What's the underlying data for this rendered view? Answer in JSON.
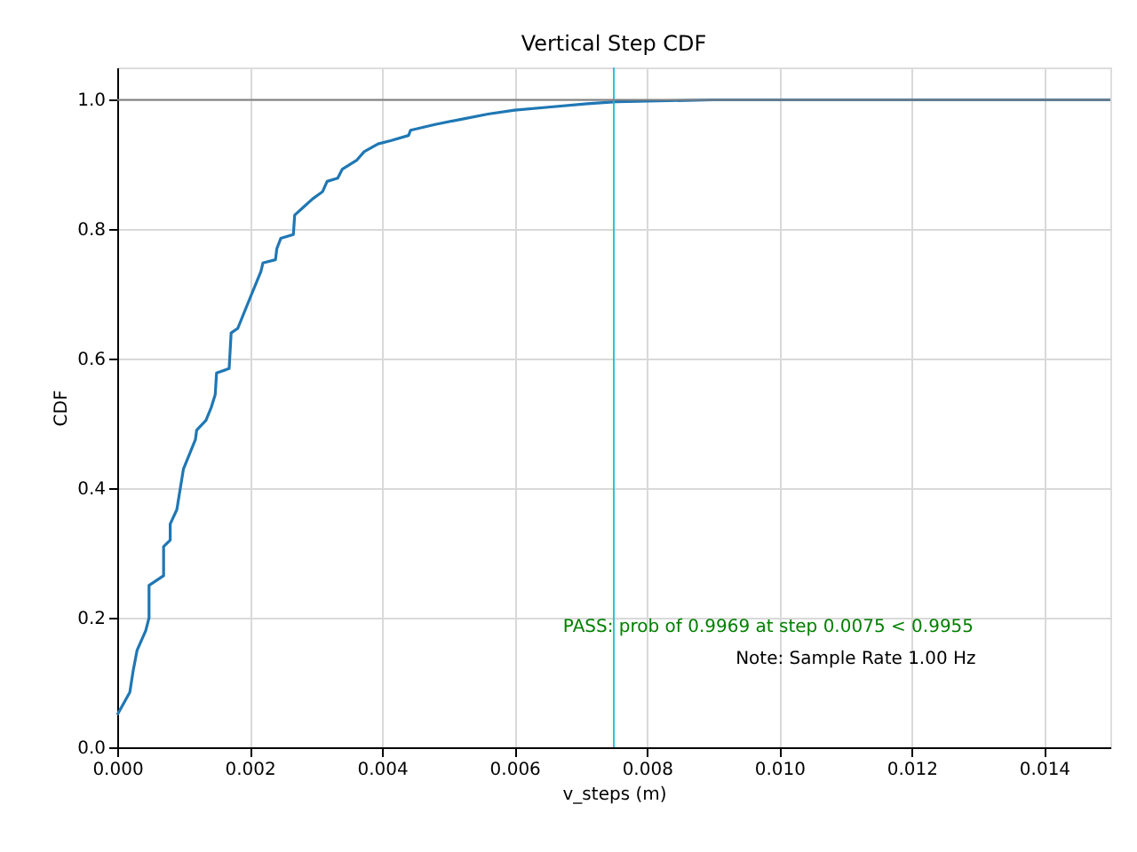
{
  "chart_data": {
    "type": "line",
    "title": "Vertical Step CDF",
    "xlabel": "v_steps (m)",
    "ylabel": "CDF",
    "x": [
      0,
      0.00019,
      0.00024,
      0.0003,
      0.00043,
      0.00048,
      0.00048,
      0.0007,
      0.0007,
      0.0008,
      0.0008,
      0.0009,
      0.001,
      0.00118,
      0.0012,
      0.00134,
      0.00142,
      0.00148,
      0.0015,
      0.00169,
      0.00172,
      0.00182,
      0.00201,
      0.00217,
      0.0022,
      0.00239,
      0.00241,
      0.00247,
      0.00266,
      0.00268,
      0.0028,
      0.00295,
      0.0031,
      0.00317,
      0.00333,
      0.0034,
      0.00362,
      0.00373,
      0.00394,
      0.00413,
      0.0044,
      0.00443,
      0.0048,
      0.0052,
      0.0056,
      0.006,
      0.00655,
      0.0071,
      0.00754,
      0.009,
      0.015
    ],
    "series": [
      {
        "color": "#1f77b4",
        "values": [
          0.05,
          0.085,
          0.118,
          0.15,
          0.18,
          0.2,
          0.25,
          0.265,
          0.31,
          0.32,
          0.345,
          0.367,
          0.43,
          0.475,
          0.49,
          0.505,
          0.525,
          0.545,
          0.578,
          0.585,
          0.64,
          0.647,
          0.695,
          0.735,
          0.748,
          0.753,
          0.77,
          0.786,
          0.792,
          0.822,
          0.833,
          0.847,
          0.858,
          0.874,
          0.879,
          0.893,
          0.907,
          0.92,
          0.932,
          0.937,
          0.945,
          0.953,
          0.962,
          0.97,
          0.978,
          0.984,
          0.989,
          0.994,
          0.997,
          1.0,
          1.0
        ]
      }
    ],
    "xlim": [
      0,
      0.015
    ],
    "xticks": [
      {
        "value": 0,
        "label": "0.000"
      },
      {
        "value": 0.002,
        "label": "0.002"
      },
      {
        "value": 0.004,
        "label": "0.004"
      },
      {
        "value": 0.006,
        "label": "0.006"
      },
      {
        "value": 0.008,
        "label": "0.008"
      },
      {
        "value": 0.01,
        "label": "0.010"
      },
      {
        "value": 0.012,
        "label": "0.012"
      },
      {
        "value": 0.014,
        "label": "0.014"
      }
    ],
    "ylim": [
      0,
      1.05
    ],
    "yticks": [
      {
        "value": 0,
        "label": "0.0"
      },
      {
        "value": 0.2,
        "label": "0.2"
      },
      {
        "value": 0.4,
        "label": "0.4"
      },
      {
        "value": 0.6,
        "label": "0.6"
      },
      {
        "value": 0.8,
        "label": "0.8"
      },
      {
        "value": 1.0,
        "label": "1.0"
      }
    ],
    "grid": true,
    "marker": "none",
    "line_style": "solid",
    "ref_lines": [
      {
        "axis": "y",
        "value": 1.0,
        "color": "#808080"
      },
      {
        "axis": "x",
        "value": 0.0075,
        "color": "#17becf"
      }
    ],
    "annotations": [
      "PASS: prob of 0.9969 at step 0.0075 < 0.9955",
      "Note: Sample Rate 1.00 Hz"
    ]
  }
}
